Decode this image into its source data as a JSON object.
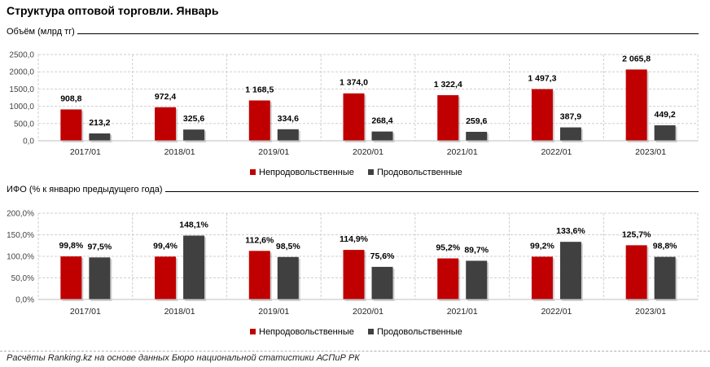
{
  "title": "Структура оптовой торговли. Январь",
  "footer": "Расчёты Ranking.kz на основе данных Бюро национальной статистики АСПиР РК",
  "colors": {
    "nonfood": "#c00000",
    "food": "#404040",
    "grid": "#cfcfcf"
  },
  "chart_data": [
    {
      "type": "bar",
      "section_label": "Объём (млрд тг)",
      "categories": [
        "2017/01",
        "2018/01",
        "2019/01",
        "2020/01",
        "2021/01",
        "2022/01",
        "2023/01"
      ],
      "series": [
        {
          "name": "Непродовольственные",
          "values": [
            908.8,
            972.4,
            1168.5,
            1374.0,
            1322.4,
            1497.3,
            2065.8
          ],
          "labels": [
            "908,8",
            "972,4",
            "1 168,5",
            "1 374,0",
            "1 322,4",
            "1 497,3",
            "2 065,8"
          ]
        },
        {
          "name": "Продовольственные",
          "values": [
            213.2,
            325.6,
            334.6,
            268.4,
            259.6,
            387.9,
            449.2
          ],
          "labels": [
            "213,2",
            "325,6",
            "334,6",
            "268,4",
            "259,6",
            "387,9",
            "449,2"
          ]
        }
      ],
      "ylim": [
        0,
        2500
      ],
      "yticks": [
        "0,0",
        "500,0",
        "1000,0",
        "1500,0",
        "2000,0",
        "2500,0"
      ],
      "grid": true,
      "legend": "bottom"
    },
    {
      "type": "bar",
      "section_label": "ИФО (% к январю предыдущего года)",
      "categories": [
        "2017/01",
        "2018/01",
        "2019/01",
        "2020/01",
        "2021/01",
        "2022/01",
        "2023/01"
      ],
      "series": [
        {
          "name": "Непродовольственные",
          "values": [
            99.8,
            99.4,
            112.6,
            114.9,
            95.2,
            99.2,
            125.7
          ],
          "labels": [
            "99,8%",
            "99,4%",
            "112,6%",
            "114,9%",
            "95,2%",
            "99,2%",
            "125,7%"
          ]
        },
        {
          "name": "Продовольственные",
          "values": [
            97.5,
            148.1,
            98.5,
            75.6,
            89.7,
            133.6,
            98.8
          ],
          "labels": [
            "97,5%",
            "148,1%",
            "98,5%",
            "75,6%",
            "89,7%",
            "133,6%",
            "98,8%"
          ]
        }
      ],
      "ylim": [
        0,
        200
      ],
      "yticks": [
        "0,0%",
        "50,0%",
        "100,0%",
        "150,0%",
        "200,0%"
      ],
      "grid": true,
      "legend": "bottom"
    }
  ]
}
